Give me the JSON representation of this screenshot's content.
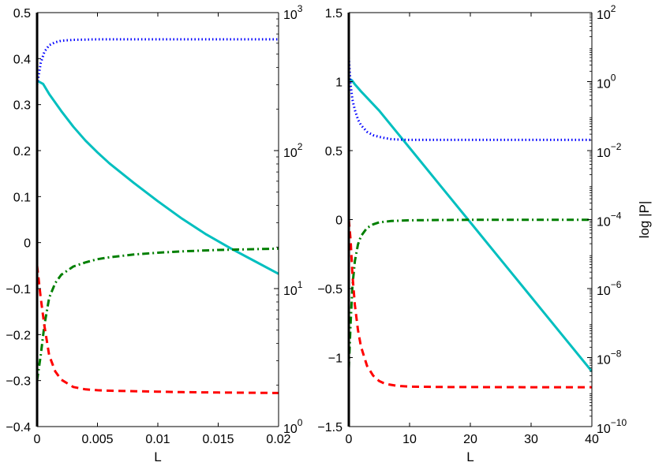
{
  "chart_data": [
    {
      "type": "line",
      "xlabel": "L",
      "ylabel": "",
      "y2label": "",
      "xlim": [
        0,
        0.02
      ],
      "ylim": [
        -0.4,
        0.5
      ],
      "y2lim": [
        1,
        1000
      ],
      "y2scale": "log",
      "grid": false,
      "x_ticks": [
        "0",
        "0.005",
        "0.01",
        "0.015",
        "0.02"
      ],
      "x_tick_values": [
        0,
        0.005,
        0.01,
        0.015,
        0.02
      ],
      "y_ticks": [
        "-0.4",
        "-0.3",
        "-0.2",
        "-0.1",
        "0",
        "0.1",
        "0.2",
        "0.3",
        "0.4",
        "0.5"
      ],
      "y_tick_values": [
        -0.4,
        -0.3,
        -0.2,
        -0.1,
        0,
        0.1,
        0.2,
        0.3,
        0.4,
        0.5
      ],
      "y2_ticks": [
        {
          "base": "10",
          "exp": "0",
          "value": 1
        },
        {
          "base": "10",
          "exp": "1",
          "value": 10
        },
        {
          "base": "10",
          "exp": "2",
          "value": 100
        },
        {
          "base": "10",
          "exp": "3",
          "value": 1000
        }
      ],
      "series": [
        {
          "style": "solid",
          "color": "#00bfbf",
          "axis": "left",
          "x": [
            0,
            0.0005,
            0.001,
            0.002,
            0.003,
            0.004,
            0.005,
            0.006,
            0.008,
            0.01,
            0.012,
            0.014,
            0.016,
            0.018,
            0.02
          ],
          "y": [
            0.352,
            0.345,
            0.323,
            0.286,
            0.252,
            0.222,
            0.196,
            0.172,
            0.13,
            0.09,
            0.052,
            0.018,
            -0.012,
            -0.04,
            -0.068
          ]
        },
        {
          "style": "dashdot",
          "color": "#007f00",
          "axis": "left",
          "x": [
            0,
            0.0003,
            0.0006,
            0.001,
            0.0015,
            0.002,
            0.003,
            0.004,
            0.005,
            0.006,
            0.008,
            0.01,
            0.012,
            0.015,
            0.02
          ],
          "y": [
            -0.3,
            -0.245,
            -0.18,
            -0.12,
            -0.088,
            -0.07,
            -0.052,
            -0.043,
            -0.036,
            -0.032,
            -0.026,
            -0.022,
            -0.019,
            -0.016,
            -0.013
          ]
        },
        {
          "style": "dashed",
          "color": "#ff0000",
          "axis": "left",
          "x": [
            0,
            0.0003,
            0.0006,
            0.001,
            0.0015,
            0.002,
            0.003,
            0.004,
            0.005,
            0.006,
            0.008,
            0.01,
            0.012,
            0.015,
            0.02
          ],
          "y": [
            -0.05,
            -0.12,
            -0.18,
            -0.245,
            -0.28,
            -0.298,
            -0.314,
            -0.319,
            -0.321,
            -0.322,
            -0.323,
            -0.324,
            -0.325,
            -0.326,
            -0.327
          ]
        },
        {
          "style": "dotted",
          "color": "#0000ff",
          "axis": "right",
          "x": [
            0,
            0.0003,
            0.0006,
            0.001,
            0.0015,
            0.002,
            0.003,
            0.005,
            0.01,
            0.015,
            0.02
          ],
          "y": [
            300,
            430,
            520,
            580,
            610,
            625,
            635,
            640,
            640,
            640,
            640
          ]
        }
      ]
    },
    {
      "type": "line",
      "xlabel": "L",
      "ylabel": "",
      "y2label": "log |P|",
      "xlim": [
        0,
        40
      ],
      "ylim": [
        -1.5,
        1.5
      ],
      "y2lim": [
        1e-10,
        100
      ],
      "y2scale": "log",
      "grid": false,
      "x_ticks": [
        "0",
        "10",
        "20",
        "30",
        "40"
      ],
      "x_tick_values": [
        0,
        10,
        20,
        30,
        40
      ],
      "y_ticks": [
        "-1.5",
        "-1",
        "-0.5",
        "0",
        "0.5",
        "1",
        "1.5"
      ],
      "y_tick_values": [
        -1.5,
        -1,
        -0.5,
        0,
        0.5,
        1,
        1.5
      ],
      "y2_ticks": [
        {
          "base": "10",
          "exp": "-10",
          "value": 1e-10
        },
        {
          "base": "10",
          "exp": "-8",
          "value": 1e-08
        },
        {
          "base": "10",
          "exp": "-6",
          "value": 1e-06
        },
        {
          "base": "10",
          "exp": "-4",
          "value": 0.0001
        },
        {
          "base": "10",
          "exp": "-2",
          "value": 0.01
        },
        {
          "base": "10",
          "exp": "0",
          "value": 1
        },
        {
          "base": "10",
          "exp": "2",
          "value": 100
        }
      ],
      "series": [
        {
          "style": "solid",
          "color": "#00bfbf",
          "axis": "left",
          "x": [
            0,
            0.5,
            1,
            2,
            5,
            10,
            15,
            20,
            25,
            30,
            35,
            40
          ],
          "y": [
            1.02,
            1.01,
            0.98,
            0.93,
            0.79,
            0.52,
            0.25,
            -0.02,
            -0.29,
            -0.56,
            -0.83,
            -1.1
          ]
        },
        {
          "style": "dashdot",
          "color": "#007f00",
          "axis": "left",
          "x": [
            0,
            0.3,
            0.6,
            1,
            1.5,
            2,
            3,
            4,
            5,
            7,
            10,
            15,
            20,
            30,
            40
          ],
          "y": [
            -1.08,
            -0.75,
            -0.48,
            -0.3,
            -0.18,
            -0.12,
            -0.06,
            -0.035,
            -0.02,
            -0.01,
            -0.005,
            -0.003,
            -0.002,
            -0.002,
            -0.002
          ]
        },
        {
          "style": "dashed",
          "color": "#ff0000",
          "axis": "left",
          "x": [
            0,
            0.3,
            0.6,
            1,
            1.5,
            2,
            3,
            4,
            5,
            6,
            8,
            10,
            15,
            20,
            30,
            40
          ],
          "y": [
            0.0,
            -0.15,
            -0.4,
            -0.62,
            -0.8,
            -0.92,
            -1.06,
            -1.13,
            -1.17,
            -1.19,
            -1.205,
            -1.21,
            -1.213,
            -1.214,
            -1.215,
            -1.215
          ]
        },
        {
          "style": "dotted",
          "color": "#0000ff",
          "axis": "right",
          "x": [
            0,
            0.3,
            0.6,
            1,
            1.5,
            2,
            3,
            4,
            5,
            6,
            7,
            8,
            10,
            15,
            20,
            30,
            40
          ],
          "y": [
            5,
            0.8,
            0.3,
            0.15,
            0.08,
            0.055,
            0.035,
            0.028,
            0.025,
            0.023,
            0.0215,
            0.021,
            0.0205,
            0.0205,
            0.0205,
            0.0205,
            0.0205
          ]
        }
      ]
    }
  ]
}
